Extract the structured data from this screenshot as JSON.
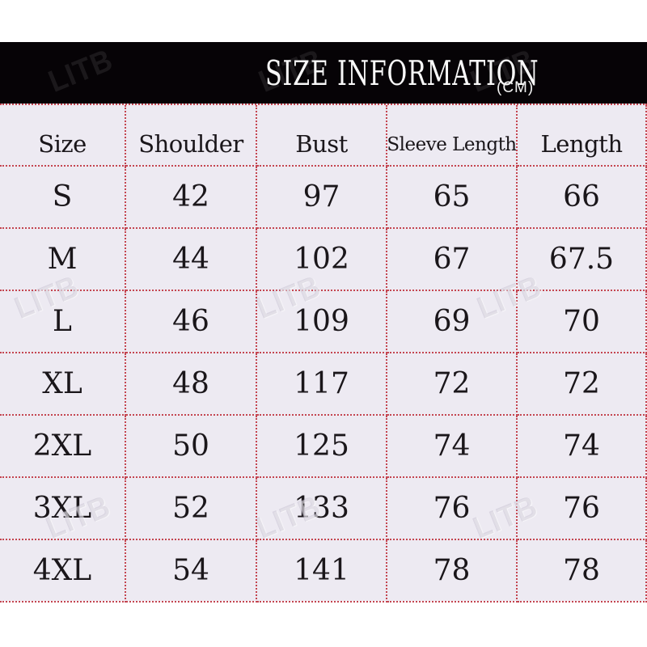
{
  "chart_data": {
    "type": "table",
    "title": "SIZE INFORMATION",
    "unit": "(CM)",
    "columns": [
      "Size",
      "Shoulder",
      "Bust",
      "Sleeve Length",
      "Length"
    ],
    "rows": [
      [
        "S",
        "42",
        "97",
        "65",
        "66"
      ],
      [
        "M",
        "44",
        "102",
        "67",
        "67.5"
      ],
      [
        "L",
        "46",
        "109",
        "69",
        "70"
      ],
      [
        "XL",
        "48",
        "117",
        "72",
        "72"
      ],
      [
        "2XL",
        "50",
        "125",
        "74",
        "74"
      ],
      [
        "3XL",
        "52",
        "133",
        "76",
        "76"
      ],
      [
        "4XL",
        "54",
        "141",
        "78",
        "78"
      ]
    ]
  },
  "watermark": {
    "text": "LITB"
  },
  "colors": {
    "title_bar": "#060306",
    "table_background": "#edeaf2",
    "grid_line": "#c44550",
    "text": "#1a161a",
    "title_text": "#f8f8f8"
  }
}
